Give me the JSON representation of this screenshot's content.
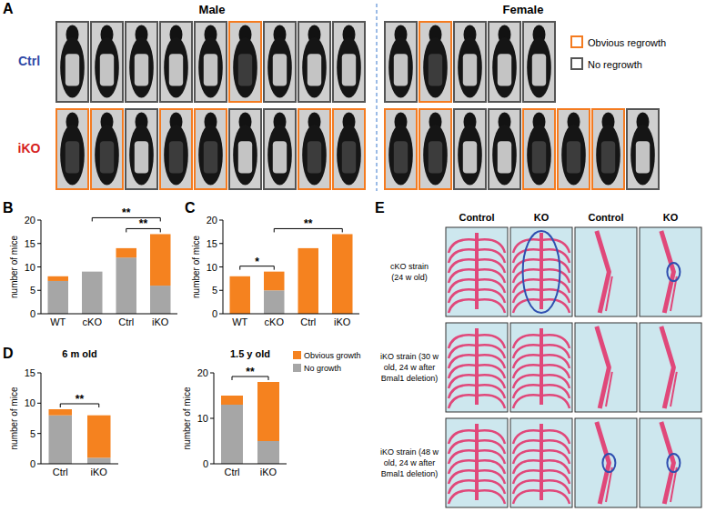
{
  "chart_data": [
    {
      "type": "bar",
      "stacked": true,
      "categories": [
        "WT",
        "cKO",
        "Ctrl",
        "iKO"
      ],
      "y_label": "number of mice",
      "ylim": [
        0,
        20
      ],
      "yticks": [
        0,
        5,
        10,
        15,
        20
      ],
      "series": [
        {
          "color": "#a6a6a6",
          "values": [
            7,
            9,
            12,
            6
          ]
        },
        {
          "color": "#f5821f",
          "values": [
            1,
            0,
            2,
            11
          ]
        }
      ],
      "annotations": [
        {
          "between": [
            "Ctrl",
            "iKO"
          ],
          "text": "**"
        },
        {
          "between": [
            "cKO",
            "iKO"
          ],
          "text": "**"
        }
      ]
    },
    {
      "type": "bar",
      "stacked": true,
      "categories": [
        "WT",
        "cKO",
        "Ctrl",
        "iKO"
      ],
      "y_label": "number of mice",
      "ylim": [
        0,
        20
      ],
      "yticks": [
        0,
        5,
        10,
        15,
        20
      ],
      "series": [
        {
          "color": "#a6a6a6",
          "values": [
            0,
            5,
            0,
            0
          ]
        },
        {
          "color": "#f5821f",
          "values": [
            8,
            4,
            14,
            17
          ]
        }
      ],
      "annotations": [
        {
          "between": [
            "WT",
            "cKO"
          ],
          "text": "*"
        },
        {
          "between": [
            "cKO",
            "iKO"
          ],
          "text": "**"
        }
      ]
    },
    {
      "type": "bar",
      "stacked": true,
      "title": "6 m old",
      "categories": [
        "Ctrl",
        "iKO"
      ],
      "y_label": "number of mice",
      "ylim": [
        0,
        15
      ],
      "yticks": [
        0,
        5,
        10,
        15
      ],
      "series": [
        {
          "color": "#a6a6a6",
          "values": [
            8,
            1
          ]
        },
        {
          "color": "#f5821f",
          "values": [
            1,
            7
          ]
        }
      ],
      "annotations": [
        {
          "between": [
            "Ctrl",
            "iKO"
          ],
          "text": "**"
        }
      ]
    },
    {
      "type": "bar",
      "stacked": true,
      "title": "1.5 y old",
      "categories": [
        "Ctrl",
        "iKO"
      ],
      "y_label": "number of mice",
      "ylim": [
        0,
        20
      ],
      "yticks": [
        0,
        10,
        20
      ],
      "legend": "upper right",
      "series": [
        {
          "name": "No growth",
          "color": "#a6a6a6",
          "values": [
            13,
            5
          ]
        },
        {
          "name": "Obvious growth",
          "color": "#f5821f",
          "values": [
            2,
            13
          ]
        }
      ],
      "annotations": [
        {
          "between": [
            "Ctrl",
            "iKO"
          ],
          "text": "**"
        }
      ]
    }
  ],
  "figure": {
    "panel_labels": [
      "A",
      "B",
      "C",
      "D",
      "E"
    ],
    "panel_a": {
      "headers": [
        "Male",
        "Female"
      ],
      "rows": [
        "Ctrl",
        "iKO"
      ],
      "legend": [
        {
          "label": "Obvious regrowth",
          "color": "#f47b20"
        },
        {
          "label": "No regrowth",
          "color": "#555555"
        }
      ],
      "male_ctrl": [
        false,
        false,
        false,
        false,
        false,
        true,
        false,
        false,
        false
      ],
      "male_iko": [
        true,
        true,
        false,
        true,
        true,
        false,
        false,
        true,
        true
      ],
      "female_ctrl": [
        false,
        true,
        false,
        false,
        false
      ],
      "female_iko": [
        true,
        true,
        false,
        false,
        true,
        true,
        true,
        false
      ]
    },
    "panel_e": {
      "columns": [
        "Control",
        "KO",
        "Control",
        "KO"
      ],
      "rows": [
        [
          "cKO strain",
          "(24 w old)"
        ],
        [
          "iKO strain (30 w",
          "old, 24 w after",
          "Bmal1 deletion)"
        ],
        [
          "iKO strain (48 w",
          "old, 24 w after",
          "Bmal1 deletion)"
        ]
      ]
    }
  }
}
